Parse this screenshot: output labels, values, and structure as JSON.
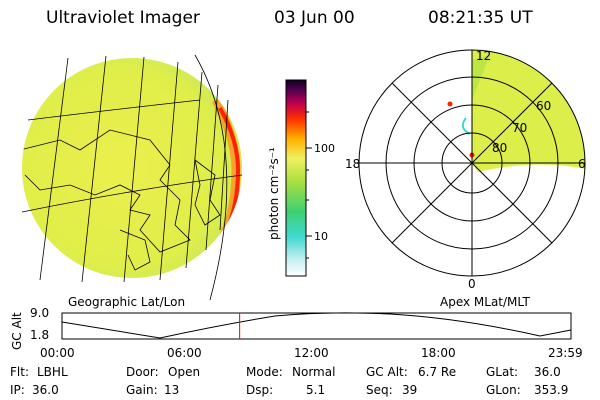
{
  "header": {
    "instrument": "Ultraviolet Imager",
    "date": "03 Jun 00",
    "time": "08:21:35 UT"
  },
  "colorbar": {
    "unit_label": "photon cm⁻²s⁻¹",
    "tick_100": "100",
    "tick_10": "10"
  },
  "polar": {
    "mlt_top": "12",
    "mlt_left": "18",
    "mlt_right": "6",
    "mlt_bottom": "0",
    "lat_60": "60",
    "lat_70": "70",
    "lat_80": "80"
  },
  "labels": {
    "geo": "Geographic Lat/Lon",
    "apex": "Apex MLat/MLT"
  },
  "altitude_plot": {
    "ylabel": "GC Alt",
    "ymax": "9.0",
    "ymin": "1.8",
    "xticks": [
      "00:00",
      "06:00",
      "12:00",
      "18:00",
      "23:59"
    ],
    "marker_time_fraction": 0.349
  },
  "info": {
    "flt_label": "Flt:",
    "flt_value": "LBHL",
    "door_label": "Door:",
    "door_value": "Open",
    "mode_label": "Mode:",
    "mode_value": "Normal",
    "gcalt_label": "GC Alt:",
    "gcalt_value": "6.7 Re",
    "glat_label": "GLat:",
    "glat_value": "36.0",
    "ip_label": "IP:",
    "ip_value": "36.0",
    "gain_label": "Gain:",
    "gain_value": "13",
    "dsp_label": "Dsp:",
    "dsp_value": "5.1",
    "seq_label": "Seq:",
    "seq_value": "39",
    "glon_label": "GLon:",
    "glon_value": "353.9"
  },
  "colors": {
    "field": "#e2ee4a",
    "aurora": "#ff2200",
    "marker": "#ff0000"
  }
}
